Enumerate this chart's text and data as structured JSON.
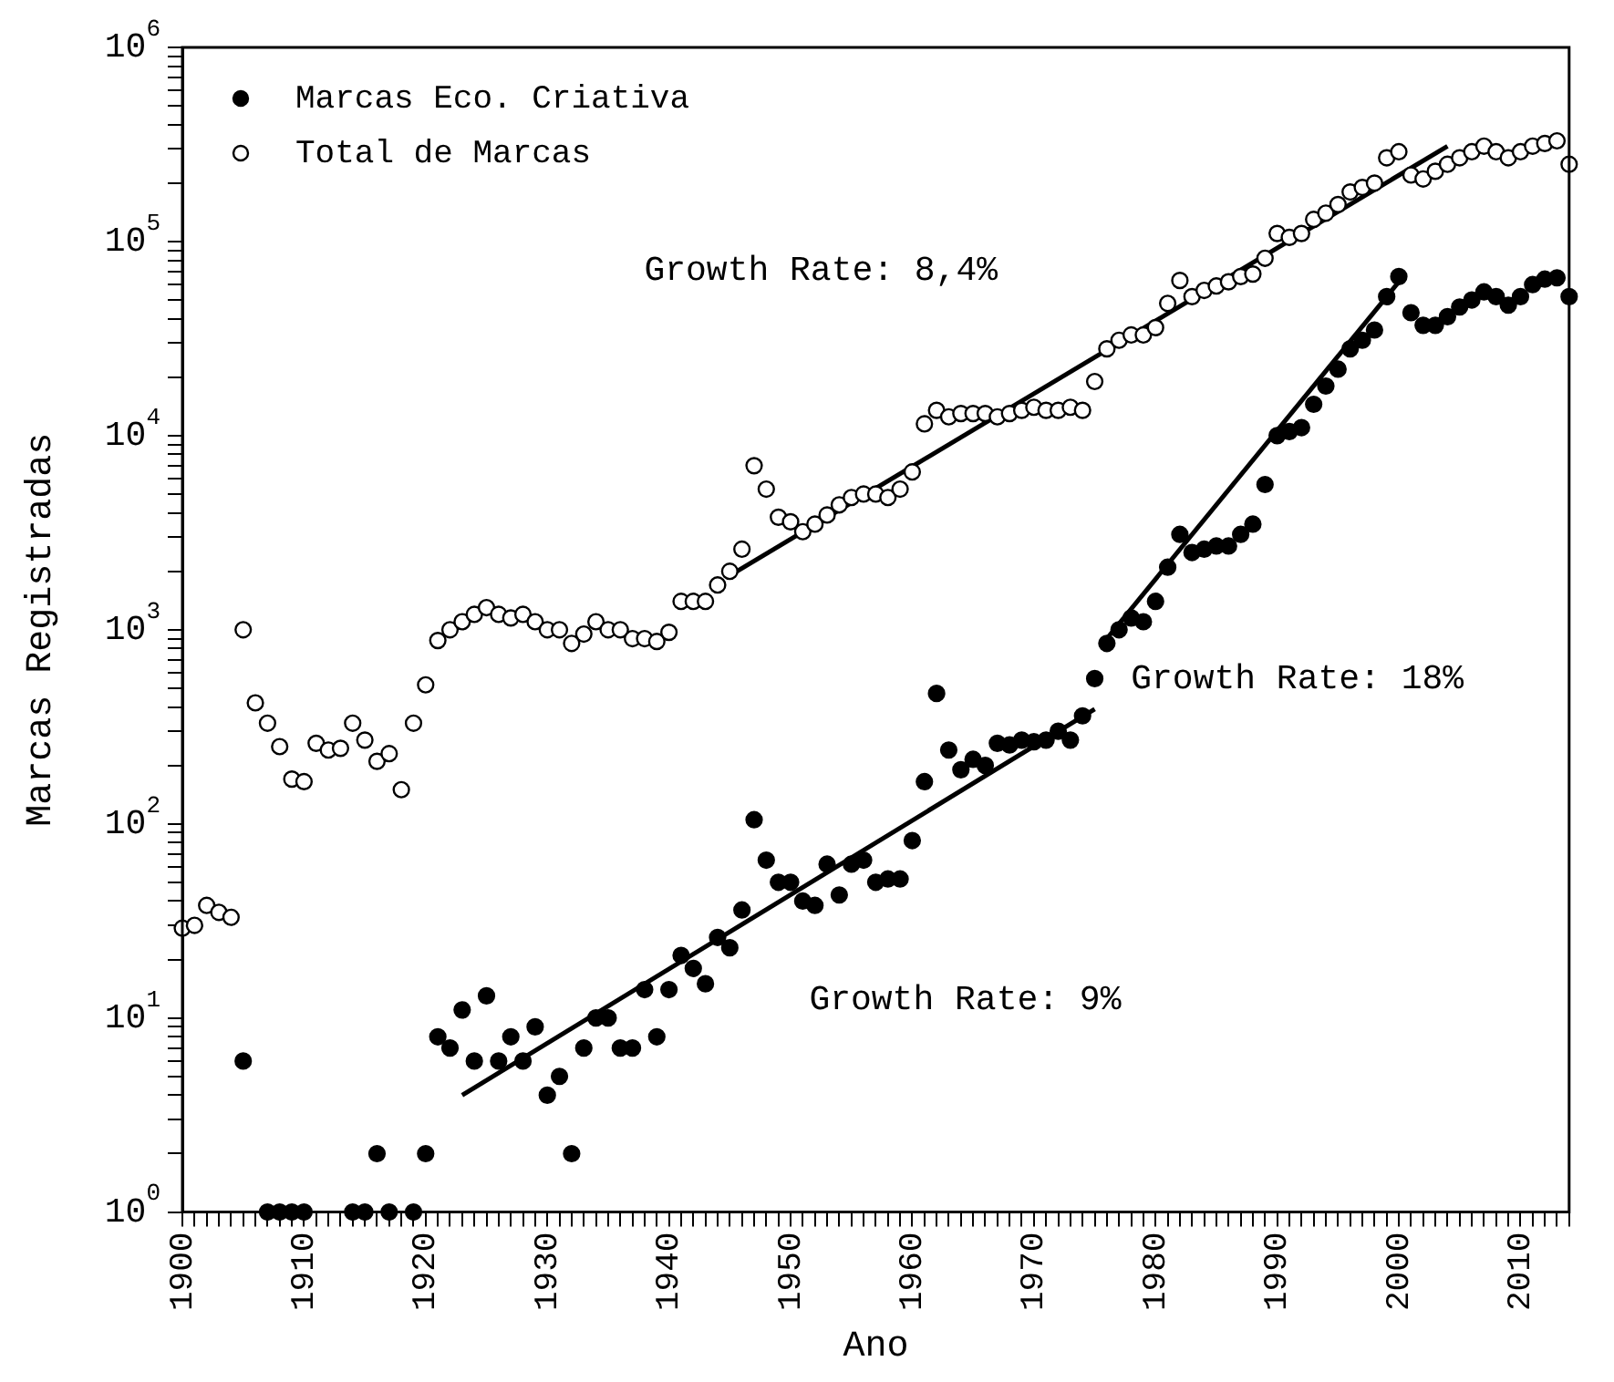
{
  "chart_data": {
    "type": "scatter",
    "xlabel": "Ano",
    "ylabel": "Marcas Registradas",
    "log": "y",
    "grid": false,
    "legend": "top left",
    "marker": "circle",
    "xlim": [
      1900,
      2014
    ],
    "xticks": [
      {
        "value": 1900,
        "label": "1900"
      },
      {
        "value": 1901,
        "label": null
      },
      {
        "value": 1902,
        "label": null
      },
      {
        "value": 1903,
        "label": null
      },
      {
        "value": 1904,
        "label": null
      },
      {
        "value": 1905,
        "label": null
      },
      {
        "value": 1906,
        "label": null
      },
      {
        "value": 1907,
        "label": null
      },
      {
        "value": 1908,
        "label": null
      },
      {
        "value": 1909,
        "label": null
      },
      {
        "value": 1910,
        "label": "1910"
      },
      {
        "value": 1911,
        "label": null
      },
      {
        "value": 1912,
        "label": null
      },
      {
        "value": 1913,
        "label": null
      },
      {
        "value": 1914,
        "label": null
      },
      {
        "value": 1915,
        "label": null
      },
      {
        "value": 1916,
        "label": null
      },
      {
        "value": 1917,
        "label": null
      },
      {
        "value": 1918,
        "label": null
      },
      {
        "value": 1919,
        "label": null
      },
      {
        "value": 1920,
        "label": "1920"
      },
      {
        "value": 1921,
        "label": null
      },
      {
        "value": 1922,
        "label": null
      },
      {
        "value": 1923,
        "label": null
      },
      {
        "value": 1924,
        "label": null
      },
      {
        "value": 1925,
        "label": null
      },
      {
        "value": 1926,
        "label": null
      },
      {
        "value": 1927,
        "label": null
      },
      {
        "value": 1928,
        "label": null
      },
      {
        "value": 1929,
        "label": null
      },
      {
        "value": 1930,
        "label": "1930"
      },
      {
        "value": 1931,
        "label": null
      },
      {
        "value": 1932,
        "label": null
      },
      {
        "value": 1933,
        "label": null
      },
      {
        "value": 1934,
        "label": null
      },
      {
        "value": 1935,
        "label": null
      },
      {
        "value": 1936,
        "label": null
      },
      {
        "value": 1937,
        "label": null
      },
      {
        "value": 1938,
        "label": null
      },
      {
        "value": 1939,
        "label": null
      },
      {
        "value": 1940,
        "label": "1940"
      },
      {
        "value": 1941,
        "label": null
      },
      {
        "value": 1942,
        "label": null
      },
      {
        "value": 1943,
        "label": null
      },
      {
        "value": 1944,
        "label": null
      },
      {
        "value": 1945,
        "label": null
      },
      {
        "value": 1946,
        "label": null
      },
      {
        "value": 1947,
        "label": null
      },
      {
        "value": 1948,
        "label": null
      },
      {
        "value": 1949,
        "label": null
      },
      {
        "value": 1950,
        "label": "1950"
      },
      {
        "value": 1951,
        "label": null
      },
      {
        "value": 1952,
        "label": null
      },
      {
        "value": 1953,
        "label": null
      },
      {
        "value": 1954,
        "label": null
      },
      {
        "value": 1955,
        "label": null
      },
      {
        "value": 1956,
        "label": null
      },
      {
        "value": 1957,
        "label": null
      },
      {
        "value": 1958,
        "label": null
      },
      {
        "value": 1959,
        "label": null
      },
      {
        "value": 1960,
        "label": "1960"
      },
      {
        "value": 1961,
        "label": null
      },
      {
        "value": 1962,
        "label": null
      },
      {
        "value": 1963,
        "label": null
      },
      {
        "value": 1964,
        "label": null
      },
      {
        "value": 1965,
        "label": null
      },
      {
        "value": 1966,
        "label": null
      },
      {
        "value": 1967,
        "label": null
      },
      {
        "value": 1968,
        "label": null
      },
      {
        "value": 1969,
        "label": null
      },
      {
        "value": 1970,
        "label": "1970"
      },
      {
        "value": 1971,
        "label": null
      },
      {
        "value": 1972,
        "label": null
      },
      {
        "value": 1973,
        "label": null
      },
      {
        "value": 1974,
        "label": null
      },
      {
        "value": 1975,
        "label": null
      },
      {
        "value": 1976,
        "label": null
      },
      {
        "value": 1977,
        "label": null
      },
      {
        "value": 1978,
        "label": null
      },
      {
        "value": 1979,
        "label": null
      },
      {
        "value": 1980,
        "label": "1980"
      },
      {
        "value": 1981,
        "label": null
      },
      {
        "value": 1982,
        "label": null
      },
      {
        "value": 1983,
        "label": null
      },
      {
        "value": 1984,
        "label": null
      },
      {
        "value": 1985,
        "label": null
      },
      {
        "value": 1986,
        "label": null
      },
      {
        "value": 1987,
        "label": null
      },
      {
        "value": 1988,
        "label": null
      },
      {
        "value": 1989,
        "label": null
      },
      {
        "value": 1990,
        "label": "1990"
      },
      {
        "value": 1991,
        "label": null
      },
      {
        "value": 1992,
        "label": null
      },
      {
        "value": 1993,
        "label": null
      },
      {
        "value": 1994,
        "label": null
      },
      {
        "value": 1995,
        "label": null
      },
      {
        "value": 1996,
        "label": null
      },
      {
        "value": 1997,
        "label": null
      },
      {
        "value": 1998,
        "label": null
      },
      {
        "value": 1999,
        "label": null
      },
      {
        "value": 2000,
        "label": "2000"
      },
      {
        "value": 2001,
        "label": null
      },
      {
        "value": 2002,
        "label": null
      },
      {
        "value": 2003,
        "label": null
      },
      {
        "value": 2004,
        "label": null
      },
      {
        "value": 2005,
        "label": null
      },
      {
        "value": 2006,
        "label": null
      },
      {
        "value": 2007,
        "label": null
      },
      {
        "value": 2008,
        "label": null
      },
      {
        "value": 2009,
        "label": null
      },
      {
        "value": 2010,
        "label": "2010"
      },
      {
        "value": 2011,
        "label": null
      },
      {
        "value": 2012,
        "label": null
      },
      {
        "value": 2013,
        "label": null
      },
      {
        "value": 2014,
        "label": null
      }
    ],
    "ylim": [
      1,
      1000000
    ],
    "yticks": [
      {
        "value": 1,
        "label": "10$^{0}$"
      },
      {
        "value": 2,
        "label": null
      },
      {
        "value": 3,
        "label": null
      },
      {
        "value": 4,
        "label": null
      },
      {
        "value": 5,
        "label": null
      },
      {
        "value": 6,
        "label": null
      },
      {
        "value": 7,
        "label": null
      },
      {
        "value": 8,
        "label": null
      },
      {
        "value": 9,
        "label": null
      },
      {
        "value": 10,
        "label": "10$^{1}$"
      },
      {
        "value": 20,
        "label": null
      },
      {
        "value": 30,
        "label": null
      },
      {
        "value": 40,
        "label": null
      },
      {
        "value": 50,
        "label": null
      },
      {
        "value": 60,
        "label": null
      },
      {
        "value": 70,
        "label": null
      },
      {
        "value": 80,
        "label": null
      },
      {
        "value": 90,
        "label": null
      },
      {
        "value": 100,
        "label": "10$^{2}$"
      },
      {
        "value": 200,
        "label": null
      },
      {
        "value": 300,
        "label": null
      },
      {
        "value": 400,
        "label": null
      },
      {
        "value": 500,
        "label": null
      },
      {
        "value": 600,
        "label": null
      },
      {
        "value": 700,
        "label": null
      },
      {
        "value": 800,
        "label": null
      },
      {
        "value": 900,
        "label": null
      },
      {
        "value": 1000,
        "label": "10$^{3}$"
      },
      {
        "value": 2000,
        "label": null
      },
      {
        "value": 3000,
        "label": null
      },
      {
        "value": 4000,
        "label": null
      },
      {
        "value": 5000,
        "label": null
      },
      {
        "value": 6000,
        "label": null
      },
      {
        "value": 7000,
        "label": null
      },
      {
        "value": 8000,
        "label": null
      },
      {
        "value": 9000,
        "label": null
      },
      {
        "value": 10000,
        "label": "10$^{4}$"
      },
      {
        "value": 20000,
        "label": null
      },
      {
        "value": 30000,
        "label": null
      },
      {
        "value": 40000,
        "label": null
      },
      {
        "value": 50000,
        "label": null
      },
      {
        "value": 60000,
        "label": null
      },
      {
        "value": 70000,
        "label": null
      },
      {
        "value": 80000,
        "label": null
      },
      {
        "value": 90000,
        "label": null
      },
      {
        "value": 100000,
        "label": "10$^{5}$"
      },
      {
        "value": 200000,
        "label": null
      },
      {
        "value": 300000,
        "label": null
      },
      {
        "value": 400000,
        "label": null
      },
      {
        "value": 500000,
        "label": null
      },
      {
        "value": 600000,
        "label": null
      },
      {
        "value": 700000,
        "label": null
      },
      {
        "value": 800000,
        "label": null
      },
      {
        "value": 900000,
        "label": null
      },
      {
        "value": 1000000,
        "label": "10$^{6}$"
      }
    ],
    "annotations": [
      "Growth Rate: 8,4%",
      "Growth Rate: 18%",
      "Growth Rate: 9%"
    ],
    "series": [
      {
        "name": "Marcas Eco. Criativa",
        "color": "#000000",
        "x": [
          1905,
          1907,
          1908,
          1909,
          1910,
          1914,
          1915,
          1916,
          1917,
          1919,
          1920,
          1921,
          1922,
          1923,
          1924,
          1925,
          1926,
          1927,
          1928,
          1929,
          1930,
          1931,
          1932,
          1933,
          1934,
          1935,
          1936,
          1937,
          1938,
          1939,
          1940,
          1941,
          1942,
          1943,
          1944,
          1945,
          1946,
          1947,
          1948,
          1949,
          1950,
          1951,
          1952,
          1953,
          1954,
          1955,
          1956,
          1957,
          1958,
          1959,
          1960,
          1961,
          1962,
          1963,
          1964,
          1965,
          1966,
          1967,
          1968,
          1969,
          1970,
          1971,
          1972,
          1973,
          1974,
          1975,
          1976,
          1977,
          1978,
          1979,
          1980,
          1981,
          1982,
          1983,
          1984,
          1985,
          1986,
          1987,
          1988,
          1989,
          1990,
          1991,
          1992,
          1993,
          1994,
          1995,
          1996,
          1997,
          1998,
          1999,
          2000,
          2001,
          2002,
          2003,
          2004,
          2005,
          2006,
          2007,
          2008,
          2009,
          2010,
          2011,
          2012,
          2013,
          2014
        ],
        "values": [
          6,
          1,
          1,
          1,
          1,
          1,
          1,
          2,
          1,
          1,
          2,
          8,
          7,
          11,
          6,
          13,
          6,
          8,
          6,
          9,
          4,
          5,
          2,
          7,
          10,
          10,
          7,
          7,
          14,
          8,
          14,
          21,
          18,
          15,
          26,
          23,
          36,
          105,
          65,
          50,
          50,
          40,
          38,
          62,
          43,
          62,
          65,
          50,
          52,
          52,
          82,
          165,
          470,
          240,
          190,
          215,
          200,
          260,
          255,
          270,
          265,
          270,
          300,
          270,
          360,
          560,
          850,
          1000,
          1150,
          1100,
          1400,
          2100,
          3100,
          2500,
          2600,
          2700,
          2700,
          3100,
          3500,
          5600,
          10000,
          10500,
          11000,
          14500,
          18000,
          22000,
          28000,
          31000,
          35000,
          52000,
          66000,
          43000,
          37000,
          37000,
          41000,
          46000,
          50000,
          55000,
          52000,
          47000,
          52000,
          60000,
          64000,
          65000,
          52000
        ]
      },
      {
        "name": "Total de Marcas",
        "color": "#ffffff",
        "x": [
          1900,
          1901,
          1902,
          1903,
          1904,
          1905,
          1906,
          1907,
          1908,
          1909,
          1910,
          1911,
          1912,
          1913,
          1914,
          1915,
          1916,
          1917,
          1918,
          1919,
          1920,
          1921,
          1922,
          1923,
          1924,
          1925,
          1926,
          1927,
          1928,
          1929,
          1930,
          1931,
          1932,
          1933,
          1934,
          1935,
          1936,
          1937,
          1938,
          1939,
          1940,
          1941,
          1942,
          1943,
          1944,
          1945,
          1946,
          1947,
          1948,
          1949,
          1950,
          1951,
          1952,
          1953,
          1954,
          1955,
          1956,
          1957,
          1958,
          1959,
          1960,
          1961,
          1962,
          1963,
          1964,
          1965,
          1966,
          1967,
          1968,
          1969,
          1970,
          1971,
          1972,
          1973,
          1974,
          1975,
          1976,
          1977,
          1978,
          1979,
          1980,
          1981,
          1982,
          1983,
          1984,
          1985,
          1986,
          1987,
          1988,
          1989,
          1990,
          1991,
          1992,
          1993,
          1994,
          1995,
          1996,
          1997,
          1998,
          1999,
          2000,
          2001,
          2002,
          2003,
          2004,
          2005,
          2006,
          2007,
          2008,
          2009,
          2010,
          2011,
          2012,
          2013,
          2014
        ],
        "values": [
          29,
          30,
          38,
          35,
          33,
          1000,
          420,
          330,
          250,
          170,
          165,
          260,
          240,
          245,
          330,
          270,
          210,
          230,
          150,
          330,
          520,
          880,
          1000,
          1100,
          1200,
          1300,
          1200,
          1150,
          1200,
          1100,
          1000,
          1000,
          850,
          950,
          1100,
          1000,
          1000,
          900,
          900,
          870,
          970,
          1400,
          1400,
          1400,
          1700,
          2000,
          2600,
          7000,
          5300,
          3800,
          3600,
          3200,
          3500,
          3900,
          4400,
          4800,
          5000,
          5000,
          4800,
          5300,
          6500,
          11500,
          13500,
          12500,
          13000,
          13000,
          13000,
          12500,
          13000,
          13500,
          14000,
          13500,
          13500,
          14000,
          13500,
          19000,
          28000,
          31000,
          33000,
          33000,
          36000,
          48000,
          63000,
          52000,
          56000,
          59000,
          62000,
          66000,
          68000,
          82000,
          110000,
          105000,
          110000,
          130000,
          140000,
          155000,
          180000,
          190000,
          200000,
          270000,
          290000,
          220000,
          210000,
          230000,
          250000,
          270000,
          290000,
          310000,
          290000,
          270000,
          290000,
          310000,
          320000,
          330000,
          250000
        ]
      },
      {
        "type": "line",
        "color": "#000000",
        "marker": "none",
        "x": [
          1945,
          2004
        ],
        "values": [
          1900,
          310000
        ]
      },
      {
        "type": "line",
        "color": "#000000",
        "marker": "none",
        "x": [
          1923,
          1975
        ],
        "values": [
          4,
          390
        ]
      },
      {
        "type": "line",
        "color": "#000000",
        "marker": "none",
        "x": [
          1976,
          2000
        ],
        "values": [
          900,
          62000
        ]
      }
    ]
  }
}
